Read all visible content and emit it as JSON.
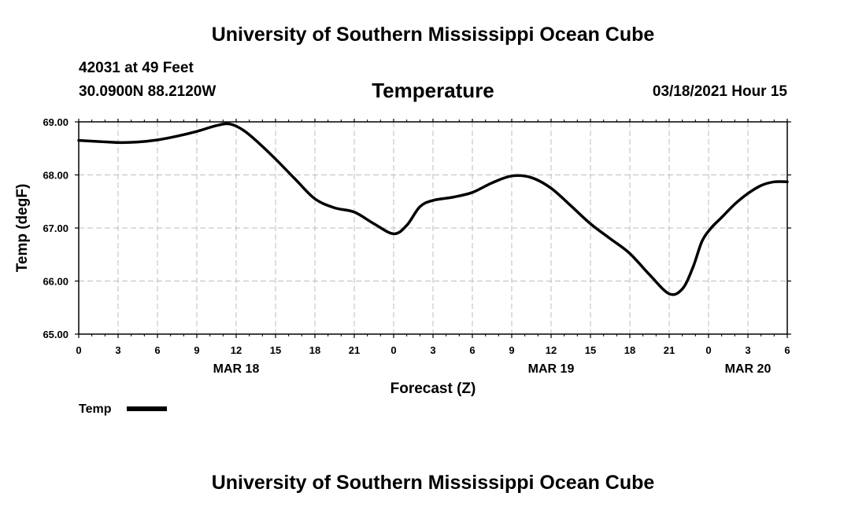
{
  "header": {
    "top_title": "University of Southern Mississippi Ocean Cube",
    "bottom_title": "University of Southern Mississippi Ocean Cube",
    "station": "42031 at 49 Feet",
    "coords": "30.0900N 88.2120W",
    "valid_time": "03/18/2021 Hour 15"
  },
  "chart_data": {
    "type": "line",
    "title": "Temperature",
    "xlabel": "Forecast (Z)",
    "ylabel": "Temp (degF)",
    "ylim": [
      65,
      69
    ],
    "xlim": [
      0,
      54
    ],
    "grid": true,
    "y_ticks": [
      "65.00",
      "66.00",
      "67.00",
      "68.00",
      "69.00"
    ],
    "x_ticks": [
      "0",
      "3",
      "6",
      "9",
      "12",
      "15",
      "18",
      "21",
      "0",
      "3",
      "6",
      "9",
      "12",
      "15",
      "18",
      "21",
      "0",
      "3",
      "6"
    ],
    "date_labels": [
      {
        "label": "MAR 18",
        "x": 12
      },
      {
        "label": "MAR 19",
        "x": 36
      },
      {
        "label": "MAR 20",
        "x": 51
      }
    ],
    "legend": {
      "label": "Temp",
      "placement": "bottom-left"
    },
    "series": [
      {
        "name": "Temp",
        "color": "#000000",
        "x": [
          0,
          1.5,
          3,
          4.5,
          6,
          7.5,
          9,
          10.5,
          11.5,
          12.5,
          13.5,
          15,
          16.5,
          18,
          19.5,
          21,
          22.5,
          24,
          25,
          26,
          27,
          28.5,
          30,
          31.5,
          33,
          34.5,
          36,
          37.5,
          39,
          40.5,
          42,
          43.5,
          45,
          46,
          46.8,
          47.5,
          48.2,
          49,
          50,
          51,
          52,
          53,
          54
        ],
        "values": [
          68.65,
          68.63,
          68.61,
          68.62,
          68.66,
          68.73,
          68.82,
          68.93,
          68.96,
          68.85,
          68.65,
          68.3,
          67.92,
          67.55,
          67.38,
          67.3,
          67.08,
          66.89,
          67.05,
          67.4,
          67.52,
          67.58,
          67.67,
          67.85,
          67.98,
          67.95,
          67.75,
          67.42,
          67.08,
          66.8,
          66.52,
          66.12,
          65.76,
          65.85,
          66.25,
          66.75,
          67.0,
          67.2,
          67.45,
          67.65,
          67.8,
          67.87,
          67.87
        ]
      }
    ]
  }
}
